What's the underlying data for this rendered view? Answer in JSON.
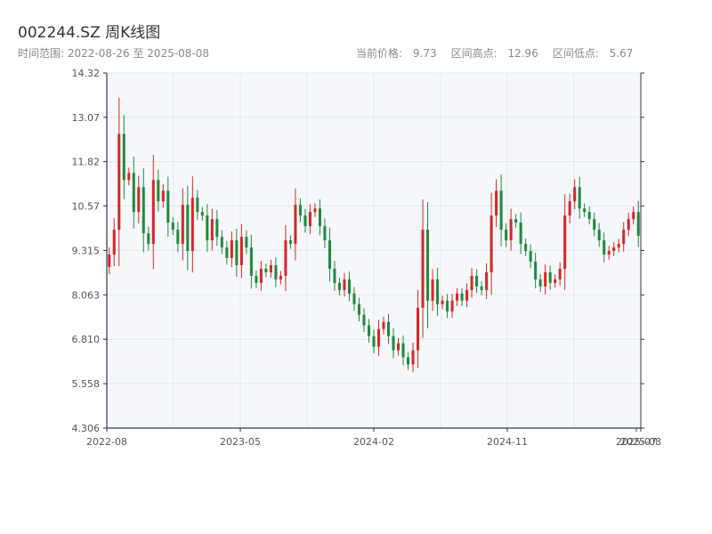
{
  "header": {
    "title": "002244.SZ 周K线图",
    "range_label": "时间范围:",
    "range_start": "2022-08-26",
    "range_sep": "至",
    "range_end": "2025-08-08",
    "current_label": "当前价格:",
    "current_value": "9.73",
    "high_label": "区间高点:",
    "high_value": "12.96",
    "low_label": "区间低点:",
    "low_value": "5.67"
  },
  "chart_data": {
    "type": "candlestick",
    "title": "002244.SZ 周K线图",
    "y_range": [
      4.306,
      14.32
    ],
    "y_ticks": [
      "4.306",
      "5.558",
      "6.810",
      "8.063",
      "9.315",
      "10.57",
      "11.82",
      "13.07",
      "14.32"
    ],
    "x_ticks": [
      "2022-08",
      "2023-05",
      "2024-02",
      "2024-11",
      "2025-07",
      "2025-08"
    ],
    "up_color": "#d62728",
    "down_color": "#1f8a3c",
    "grid": true,
    "closes": [
      9.2,
      9.9,
      12.6,
      11.3,
      11.5,
      10.4,
      11.1,
      9.8,
      9.5,
      11.3,
      10.7,
      11.0,
      10.1,
      9.9,
      9.5,
      10.6,
      9.3,
      10.8,
      10.4,
      10.3,
      9.6,
      10.2,
      9.7,
      9.4,
      9.1,
      9.6,
      8.9,
      9.7,
      9.4,
      8.6,
      8.4,
      8.8,
      8.7,
      8.9,
      8.5,
      8.6,
      9.6,
      9.5,
      10.6,
      10.3,
      10.0,
      10.4,
      10.5,
      10.0,
      9.6,
      8.8,
      8.4,
      8.2,
      8.5,
      8.1,
      7.8,
      7.5,
      7.2,
      6.9,
      6.6,
      7.1,
      7.3,
      6.9,
      6.5,
      6.7,
      6.3,
      6.1,
      6.5,
      7.7,
      9.9,
      7.9,
      8.5,
      7.8,
      7.9,
      7.6,
      7.9,
      8.1,
      7.9,
      8.2,
      8.6,
      8.3,
      8.2,
      8.7,
      10.3,
      11.0,
      9.9,
      9.6,
      10.2,
      10.1,
      9.5,
      9.3,
      9.0,
      8.5,
      8.3,
      8.7,
      8.4,
      8.5,
      8.8,
      10.3,
      10.7,
      11.1,
      10.5,
      10.4,
      10.2,
      9.9,
      9.6,
      9.2,
      9.3,
      9.4,
      9.5,
      9.9,
      10.2,
      10.4,
      9.73
    ]
  },
  "colors": {
    "plot_bg": "#f5f7fa",
    "grid": "#e3e7ec",
    "axis": "#2d3a4a"
  }
}
